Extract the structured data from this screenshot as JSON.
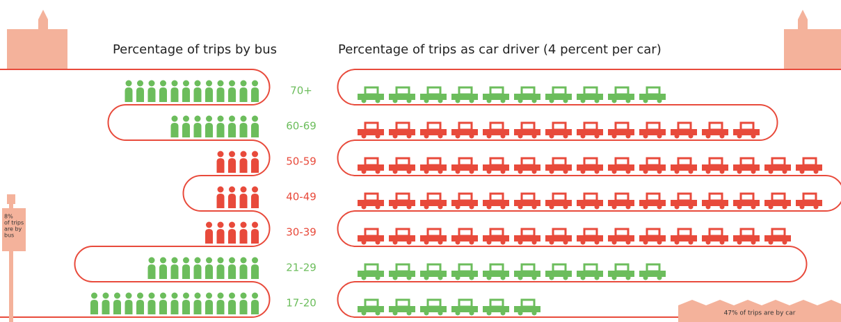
{
  "chart_data": [
    {
      "type": "pictograph",
      "title": "Percentage of trips by bus",
      "categories": [
        "70+",
        "60-69",
        "50-59",
        "40-49",
        "30-39",
        "21-29",
        "17-20"
      ],
      "values": [
        12,
        8,
        4,
        4,
        5,
        10,
        15
      ],
      "colors": [
        "#6cbd5c",
        "#6cbd5c",
        "#e84a3b",
        "#e84a3b",
        "#e84a3b",
        "#6cbd5c",
        "#6cbd5c"
      ]
    },
    {
      "type": "pictograph",
      "title": "Percentage of trips as car driver (4 percent per car)",
      "values": [
        10,
        13,
        15,
        15,
        14,
        10,
        6
      ],
      "colors": [
        "#6cbd5c",
        "#e84a3b",
        "#e84a3b",
        "#e84a3b",
        "#e84a3b",
        "#6cbd5c",
        "#6cbd5c"
      ]
    }
  ],
  "annotations": {
    "bus_share": [
      "8%",
      "of trips",
      "are by",
      "bus"
    ],
    "car_share": "47% of trips are by car"
  }
}
